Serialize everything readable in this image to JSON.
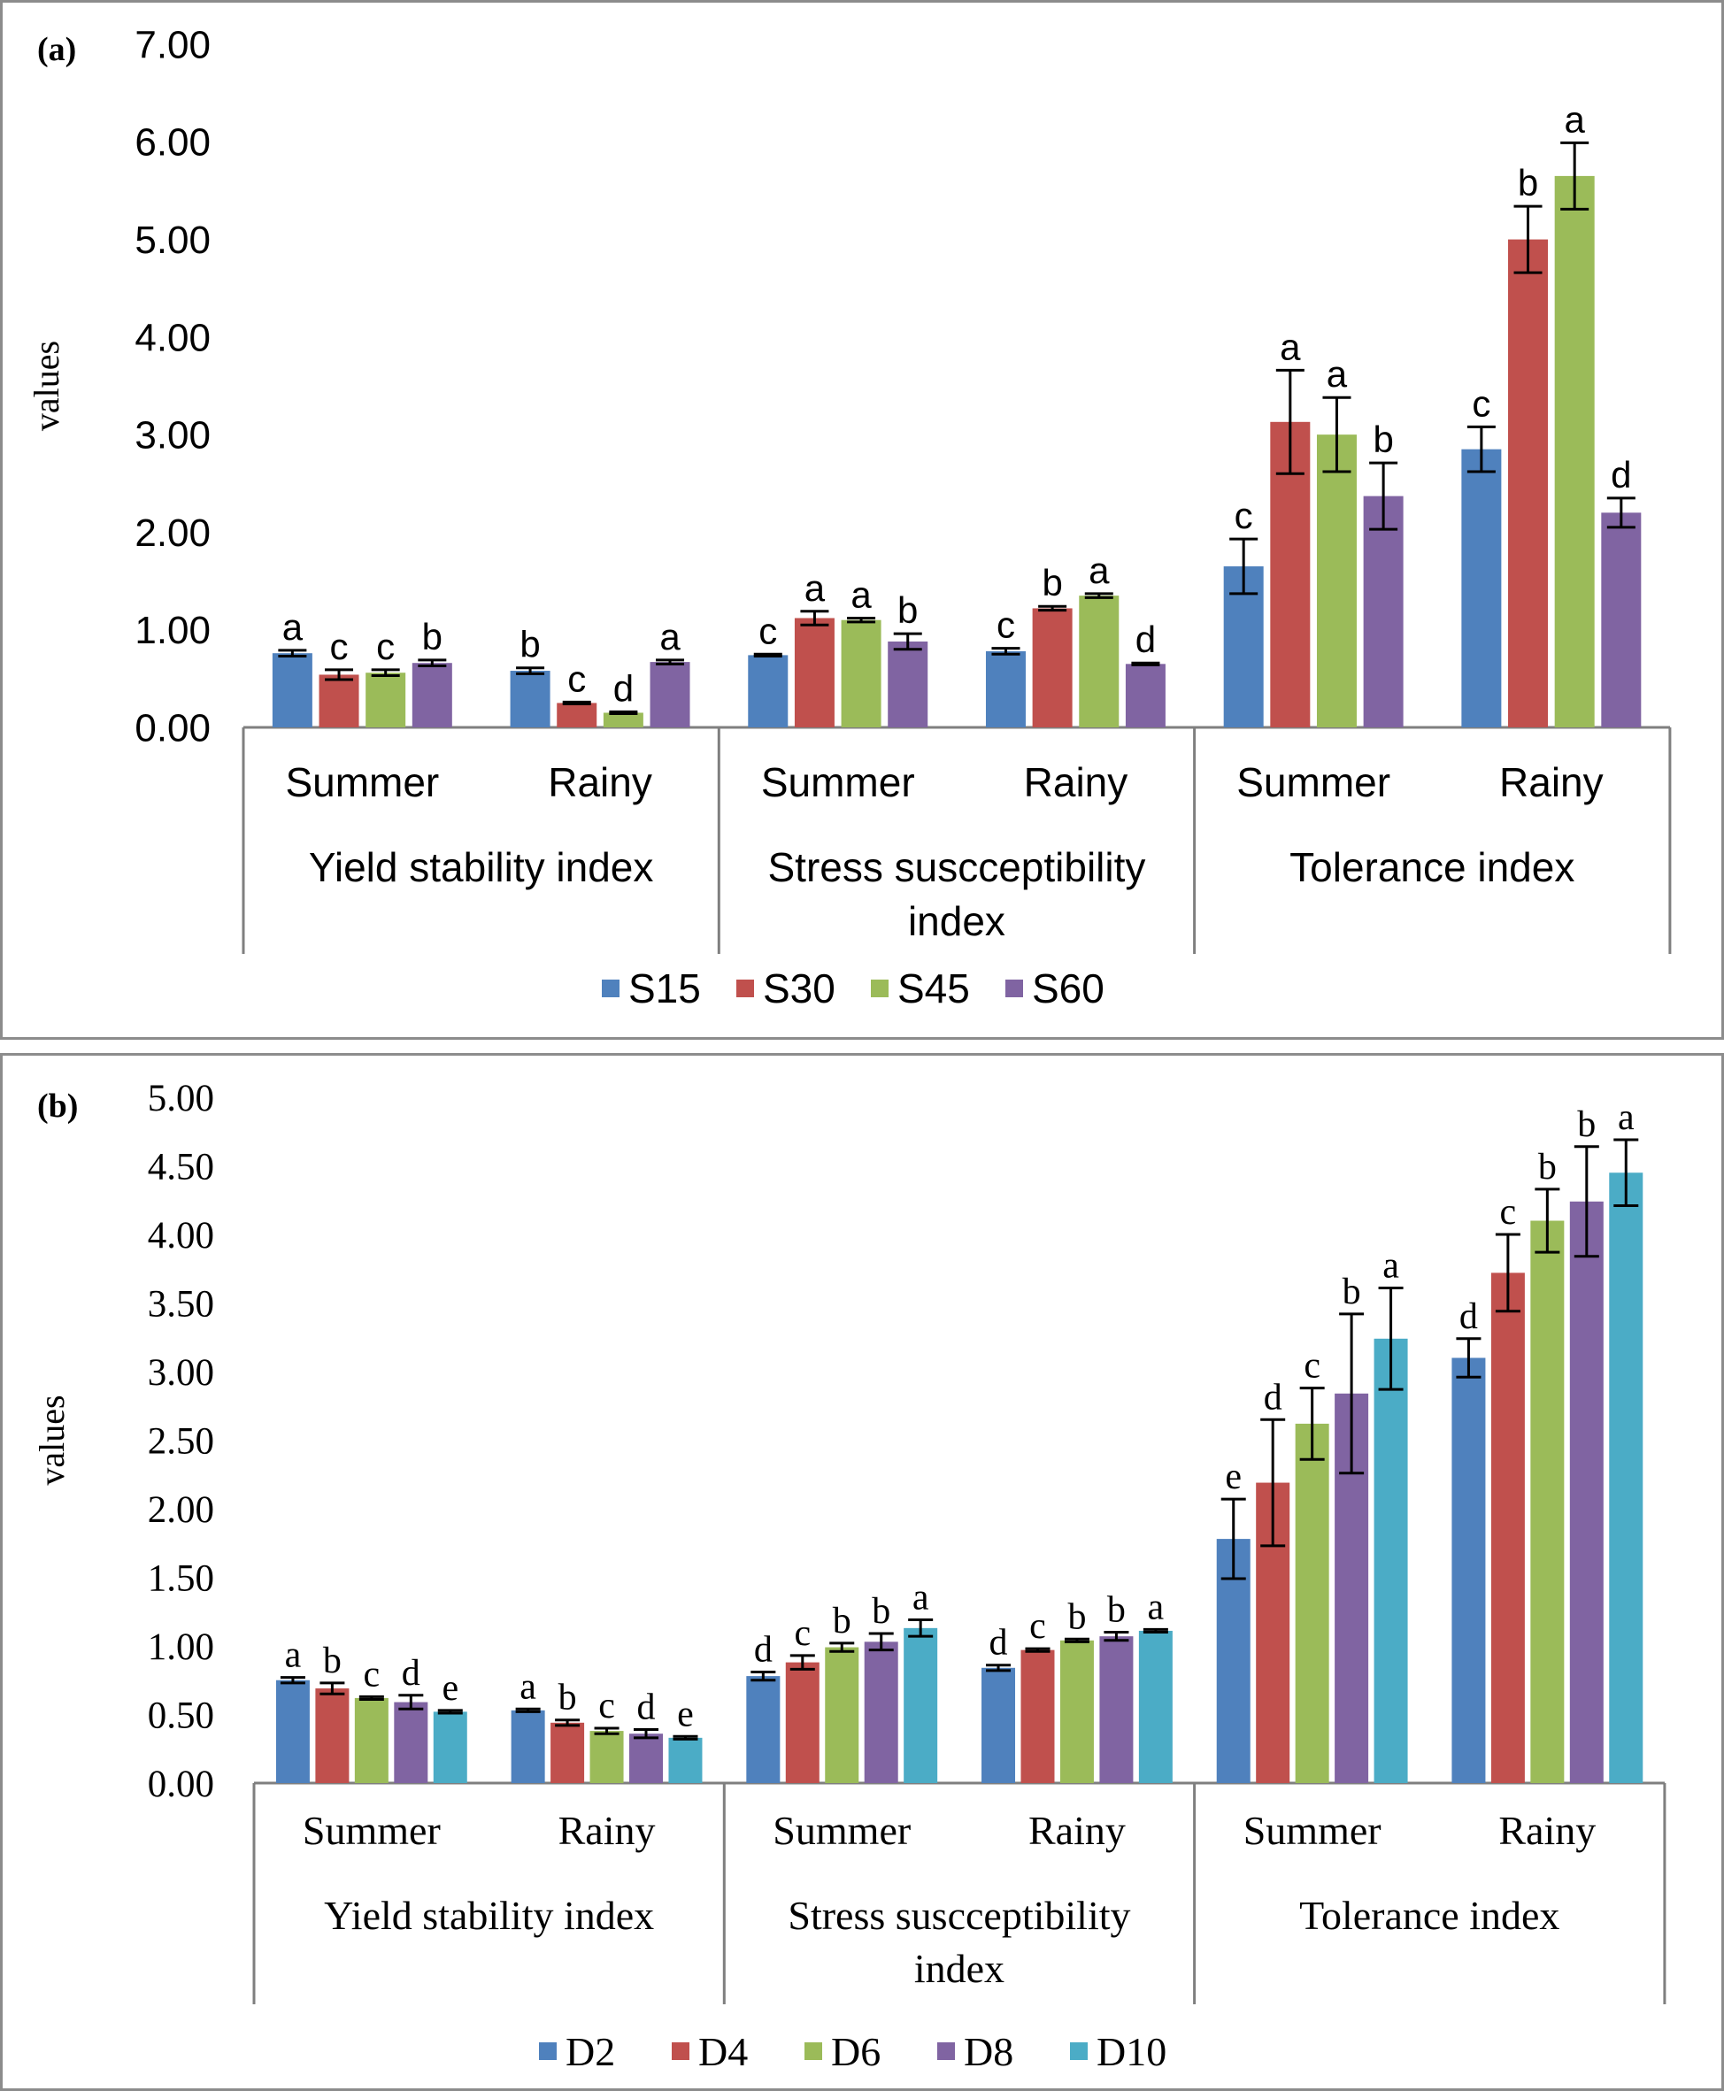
{
  "chart_data": [
    {
      "type": "bar",
      "panel_label": "(a)",
      "ylabel": "values",
      "ylim": [
        0,
        7
      ],
      "yticks": [
        "0.00",
        "1.00",
        "2.00",
        "3.00",
        "4.00",
        "5.00",
        "6.00",
        "7.00"
      ],
      "groups": [
        {
          "label": "Yield stability index",
          "subgroups": [
            "Summer",
            "Rainy"
          ]
        },
        {
          "label": "Stress suscceptibility index",
          "subgroups": [
            "Summer",
            "Rainy"
          ]
        },
        {
          "label": "Tolerance index",
          "subgroups": [
            "Summer",
            "Rainy"
          ]
        }
      ],
      "series": [
        {
          "name": "S15",
          "color": "#4f81bd",
          "values": [
            0.76,
            0.58,
            0.74,
            0.78,
            1.65,
            2.85
          ],
          "errors": [
            0.03,
            0.03,
            0.01,
            0.03,
            0.28,
            0.23
          ],
          "letters": [
            "a",
            "b",
            "c",
            "c",
            "c",
            "c"
          ]
        },
        {
          "name": "S30",
          "color": "#c0504d",
          "values": [
            0.54,
            0.25,
            1.12,
            1.22,
            3.13,
            5.0
          ],
          "errors": [
            0.05,
            0.01,
            0.07,
            0.02,
            0.53,
            0.34
          ],
          "letters": [
            "c",
            "c",
            "a",
            "b",
            "a",
            "b"
          ]
        },
        {
          "name": "S45",
          "color": "#9bbb59",
          "values": [
            0.56,
            0.15,
            1.1,
            1.35,
            3.0,
            5.65
          ],
          "errors": [
            0.03,
            0.01,
            0.02,
            0.02,
            0.38,
            0.34
          ],
          "letters": [
            "c",
            "d",
            "a",
            "a",
            "a",
            "a"
          ]
        },
        {
          "name": "S60",
          "color": "#8064a2",
          "values": [
            0.66,
            0.67,
            0.88,
            0.65,
            2.37,
            2.2
          ],
          "errors": [
            0.03,
            0.02,
            0.08,
            0.01,
            0.34,
            0.15
          ],
          "letters": [
            "b",
            "a",
            "b",
            "d",
            "b",
            "d"
          ]
        }
      ]
    },
    {
      "type": "bar",
      "panel_label": "(b)",
      "ylabel": "values",
      "ylim": [
        0,
        5
      ],
      "yticks": [
        "0.00",
        "0.50",
        "1.00",
        "1.50",
        "2.00",
        "2.50",
        "3.00",
        "3.50",
        "4.00",
        "4.50",
        "5.00"
      ],
      "groups": [
        {
          "label": "Yield stability index",
          "subgroups": [
            "Summer",
            "Rainy"
          ]
        },
        {
          "label": "Stress suscceptibility index",
          "subgroups": [
            "Summer",
            "Rainy"
          ]
        },
        {
          "label": "Tolerance index",
          "subgroups": [
            "Summer",
            "Rainy"
          ]
        }
      ],
      "series": [
        {
          "name": "D2",
          "color": "#4f81bd",
          "values": [
            0.75,
            0.53,
            0.78,
            0.84,
            1.78,
            3.1
          ],
          "errors": [
            0.02,
            0.01,
            0.03,
            0.02,
            0.29,
            0.14
          ],
          "letters": [
            "a",
            "a",
            "d",
            "d",
            "e",
            "d"
          ]
        },
        {
          "name": "D4",
          "color": "#c0504d",
          "values": [
            0.69,
            0.44,
            0.88,
            0.97,
            2.19,
            3.72
          ],
          "errors": [
            0.04,
            0.02,
            0.05,
            0.01,
            0.46,
            0.28
          ],
          "letters": [
            "b",
            "b",
            "c",
            "c",
            "d",
            "c"
          ]
        },
        {
          "name": "D6",
          "color": "#9bbb59",
          "values": [
            0.62,
            0.38,
            0.99,
            1.04,
            2.62,
            4.1
          ],
          "errors": [
            0.01,
            0.02,
            0.03,
            0.01,
            0.26,
            0.23
          ],
          "letters": [
            "c",
            "c",
            "b",
            "b",
            "c",
            "b"
          ]
        },
        {
          "name": "D8",
          "color": "#8064a2",
          "values": [
            0.59,
            0.36,
            1.03,
            1.07,
            2.84,
            4.24
          ],
          "errors": [
            0.05,
            0.03,
            0.06,
            0.03,
            0.58,
            0.4
          ],
          "letters": [
            "d",
            "d",
            "b",
            "b",
            "b",
            "b"
          ]
        },
        {
          "name": "D10",
          "color": "#4bacc6",
          "values": [
            0.52,
            0.33,
            1.13,
            1.11,
            3.24,
            4.45
          ],
          "errors": [
            0.01,
            0.01,
            0.06,
            0.01,
            0.37,
            0.24
          ],
          "letters": [
            "e",
            "e",
            "a",
            "a",
            "a",
            "a"
          ]
        }
      ]
    }
  ]
}
